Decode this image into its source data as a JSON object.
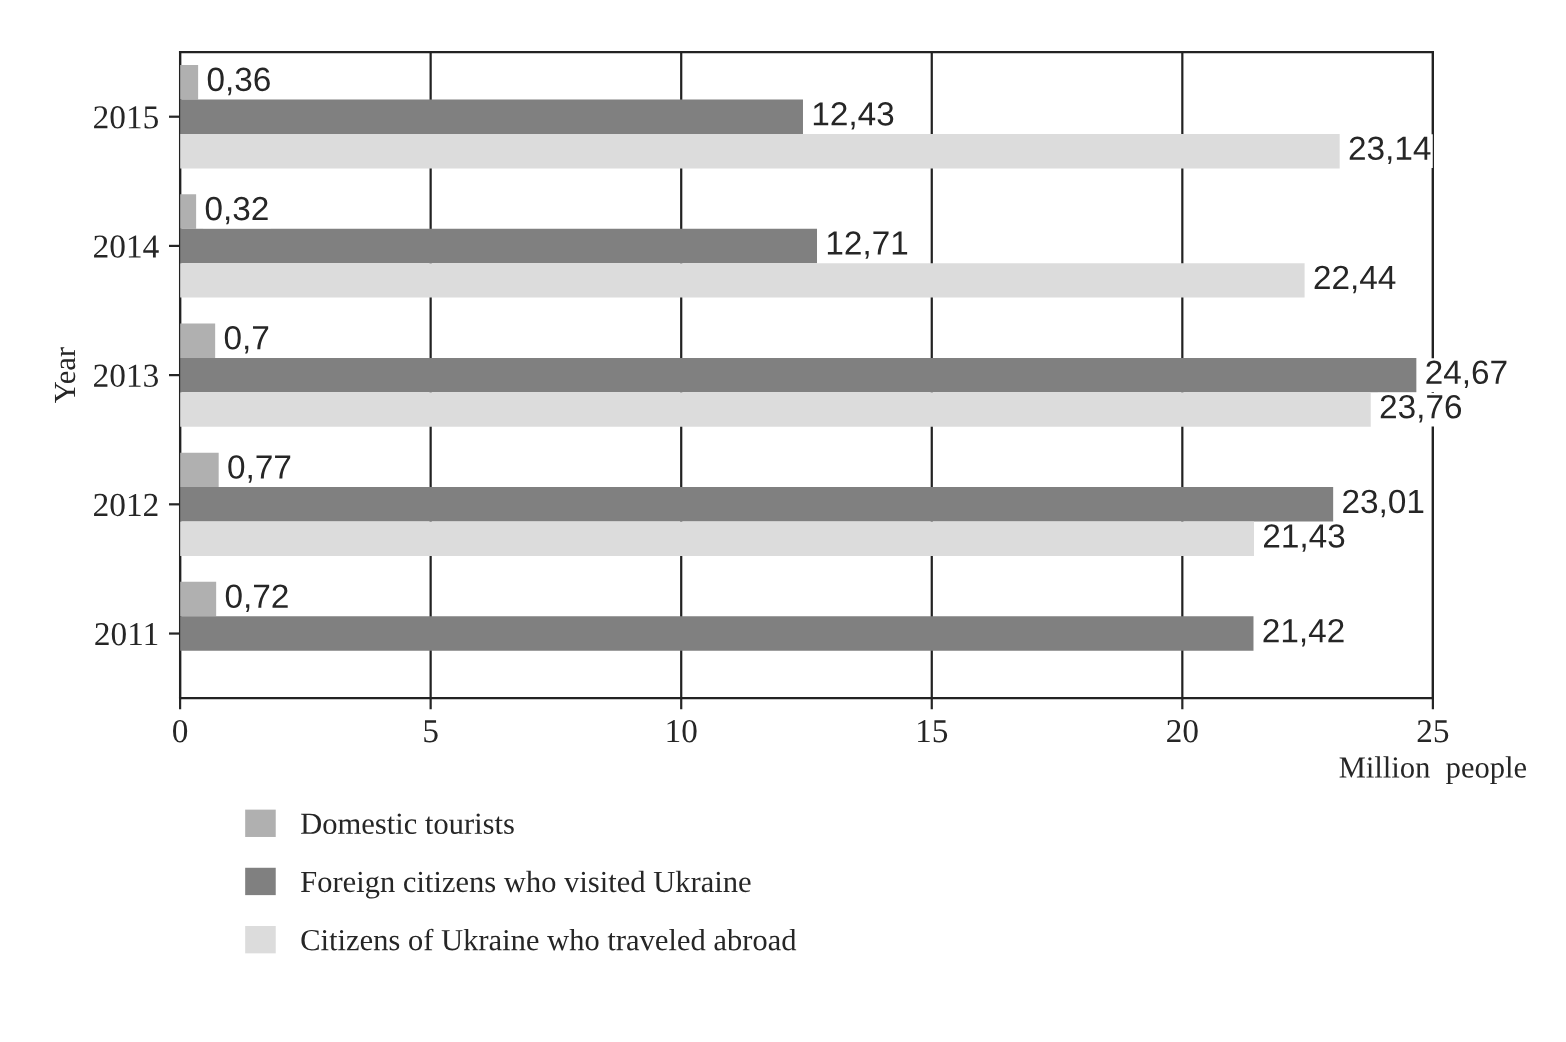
{
  "chart_data": {
    "type": "bar",
    "orientation": "horizontal",
    "ylabel": "Year",
    "xlabel": "Million  people",
    "categories": [
      "2015",
      "2014",
      "2013",
      "2012",
      "2011"
    ],
    "series": [
      {
        "name": "Domestic tourists",
        "color": "#b0b0b0",
        "values": [
          0.36,
          0.32,
          0.7,
          0.77,
          0.72
        ],
        "value_labels": [
          "0,36",
          "0,32",
          "0,7",
          "0,77",
          "0,72"
        ]
      },
      {
        "name": "Foreign citizens who visited Ukraine",
        "color": "#808080",
        "values": [
          12.43,
          12.71,
          24.67,
          23.01,
          21.42
        ],
        "value_labels": [
          "12,43",
          "12,71",
          "24,67",
          "23,01",
          "21,42"
        ]
      },
      {
        "name": "Citizens of Ukraine who traveled abroad",
        "color": "#dcdcdc",
        "values": [
          23.14,
          22.44,
          23.76,
          21.43,
          0
        ],
        "value_labels": [
          "23,14",
          "22,44",
          "23,76",
          "21,43",
          null
        ]
      }
    ],
    "xlim": [
      0,
      25
    ],
    "xticks": [
      0,
      5,
      10,
      15,
      20,
      25
    ],
    "grid": "x",
    "legend": "bottom"
  }
}
